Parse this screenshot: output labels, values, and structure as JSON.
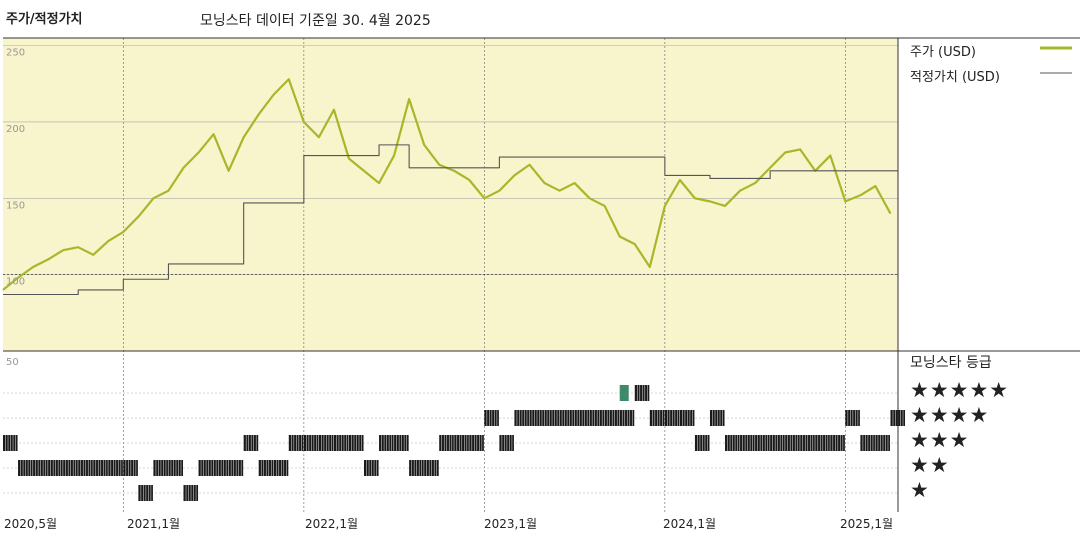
{
  "header": {
    "left_title": "주가/적정가치",
    "center_title": "모닝스타 데이터 기준일 30. 4월 2025"
  },
  "legend": {
    "price_label": "주가 (USD)",
    "fair_label": "적정가치 (USD)",
    "price_color": "#a6b82a",
    "fair_color": "#555555"
  },
  "rating": {
    "title": "모닝스타 등급",
    "stars": [
      "★★★★★",
      "★★★★",
      "★★★",
      "★★",
      "★"
    ]
  },
  "x_labels": [
    "2020,5월",
    "2021,1월",
    "2022,1월",
    "2023,1월",
    "2024,1월",
    "2025,1월"
  ],
  "chart_data": [
    {
      "type": "line",
      "ylim": [
        50,
        255
      ],
      "yticks": [
        250,
        200,
        150,
        100
      ],
      "xlim": [
        "2020-05",
        "2025-04"
      ],
      "grid": true,
      "legend_position": "right",
      "background_color": "#f8f4cc",
      "series": [
        {
          "name": "주가 (USD)",
          "x": [
            "2020-05",
            "2020-06",
            "2020-07",
            "2020-08",
            "2020-09",
            "2020-10",
            "2020-11",
            "2020-12",
            "2021-01",
            "2021-02",
            "2021-03",
            "2021-04",
            "2021-05",
            "2021-06",
            "2021-07",
            "2021-08",
            "2021-09",
            "2021-10",
            "2021-11",
            "2021-12",
            "2022-01",
            "2022-02",
            "2022-03",
            "2022-04",
            "2022-05",
            "2022-06",
            "2022-07",
            "2022-08",
            "2022-09",
            "2022-10",
            "2022-11",
            "2022-12",
            "2023-01",
            "2023-02",
            "2023-03",
            "2023-04",
            "2023-05",
            "2023-06",
            "2023-07",
            "2023-08",
            "2023-09",
            "2023-10",
            "2023-11",
            "2023-12",
            "2024-01",
            "2024-02",
            "2024-03",
            "2024-04",
            "2024-05",
            "2024-06",
            "2024-07",
            "2024-08",
            "2024-09",
            "2024-10",
            "2024-11",
            "2024-12",
            "2025-01",
            "2025-02",
            "2025-03",
            "2025-04"
          ],
          "values": [
            90,
            98,
            105,
            110,
            116,
            118,
            113,
            122,
            128,
            138,
            150,
            155,
            170,
            180,
            192,
            168,
            190,
            205,
            218,
            228,
            200,
            190,
            208,
            176,
            168,
            160,
            178,
            215,
            185,
            172,
            168,
            162,
            150,
            155,
            165,
            172,
            160,
            155,
            160,
            150,
            145,
            125,
            120,
            105,
            145,
            162,
            150,
            148,
            145,
            155,
            160,
            170,
            180,
            182,
            168,
            178,
            148,
            152,
            158,
            140
          ]
        },
        {
          "name": "적정가치 (USD)",
          "x": [
            "2020-05",
            "2020-09",
            "2020-10",
            "2020-12",
            "2021-01",
            "2021-03",
            "2021-04",
            "2021-08",
            "2021-09",
            "2021-12",
            "2022-01",
            "2022-05",
            "2022-06",
            "2022-07",
            "2022-08",
            "2023-01",
            "2023-02",
            "2023-06",
            "2023-07",
            "2023-12",
            "2024-01",
            "2024-03",
            "2024-04",
            "2024-07",
            "2024-08",
            "2024-12",
            "2025-01",
            "2025-04"
          ],
          "values": [
            87,
            87,
            90,
            90,
            97,
            97,
            107,
            107,
            147,
            147,
            178,
            178,
            185,
            185,
            170,
            170,
            177,
            177,
            177,
            177,
            165,
            165,
            163,
            163,
            168,
            168,
            168,
            168
          ]
        }
      ]
    },
    {
      "type": "scatter",
      "title": "모닝스타 등급",
      "ylim": [
        0,
        50
      ],
      "categories": [
        "★★★★★",
        "★★★★",
        "★★★",
        "★★",
        "★"
      ],
      "series": [
        {
          "name": "rating",
          "x": [
            "2020-05",
            "2020-06",
            "2020-07",
            "2020-08",
            "2020-09",
            "2020-10",
            "2020-11",
            "2020-12",
            "2021-01",
            "2021-02",
            "2021-03",
            "2021-04",
            "2021-05",
            "2021-06",
            "2021-07",
            "2021-08",
            "2021-09",
            "2021-10",
            "2021-11",
            "2021-12",
            "2022-01",
            "2022-02",
            "2022-03",
            "2022-04",
            "2022-05",
            "2022-06",
            "2022-07",
            "2022-08",
            "2022-09",
            "2022-10",
            "2022-11",
            "2022-12",
            "2023-01",
            "2023-02",
            "2023-03",
            "2023-04",
            "2023-05",
            "2023-06",
            "2023-07",
            "2023-08",
            "2023-09",
            "2023-10",
            "2023-11",
            "2023-12",
            "2024-01",
            "2024-02",
            "2024-03",
            "2024-04",
            "2024-05",
            "2024-06",
            "2024-07",
            "2024-08",
            "2024-09",
            "2024-10",
            "2024-11",
            "2024-12",
            "2025-01",
            "2025-02",
            "2025-03",
            "2025-04"
          ],
          "values": [
            3,
            2,
            2,
            2,
            2,
            2,
            2,
            2,
            2,
            1,
            2,
            2,
            1,
            2,
            2,
            2,
            3,
            2,
            2,
            3,
            3,
            3,
            3,
            3,
            2,
            3,
            3,
            2,
            2,
            3,
            3,
            3,
            4,
            3,
            4,
            4,
            4,
            4,
            4,
            4,
            4,
            4,
            5,
            4,
            4,
            4,
            3,
            4,
            3,
            3,
            3,
            3,
            3,
            3,
            3,
            3,
            4,
            3,
            3,
            4
          ]
        }
      ]
    }
  ]
}
